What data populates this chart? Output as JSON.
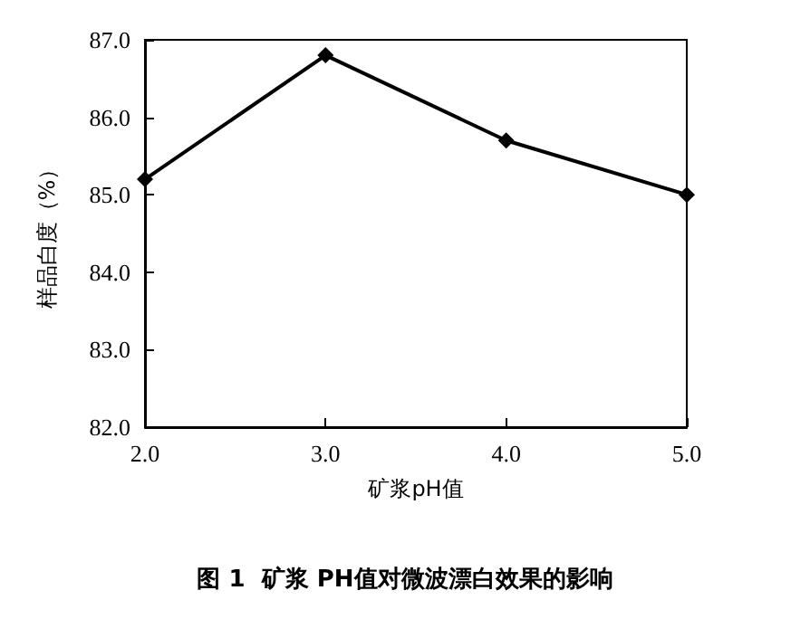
{
  "chart_data": {
    "type": "line",
    "title": "图 1  矿浆 PH值对微波漂白效果的影响",
    "xlabel": "矿浆pH值",
    "ylabel": "样品白度（%）",
    "x": [
      2,
      3,
      4,
      5
    ],
    "series": [
      {
        "color": "#000000",
        "values": [
          85.2,
          86.8,
          85.7,
          85.0
        ]
      }
    ],
    "xlim": [
      2,
      5
    ],
    "xticks": [
      {
        "value": 2,
        "label": "2.0"
      },
      {
        "value": 3,
        "label": "3.0"
      },
      {
        "value": 4,
        "label": "4.0"
      },
      {
        "value": 5,
        "label": "5.0"
      }
    ],
    "ylim": [
      82,
      87
    ],
    "yticks": [
      {
        "value": 82,
        "label": "82.0"
      },
      {
        "value": 83,
        "label": "83.0"
      },
      {
        "value": 84,
        "label": "84.0"
      },
      {
        "value": 85,
        "label": "85.0"
      },
      {
        "value": 86,
        "label": "86.0"
      },
      {
        "value": 87,
        "label": "87.0"
      }
    ],
    "grid": false,
    "marker": "diamond",
    "line_style": "solid"
  }
}
